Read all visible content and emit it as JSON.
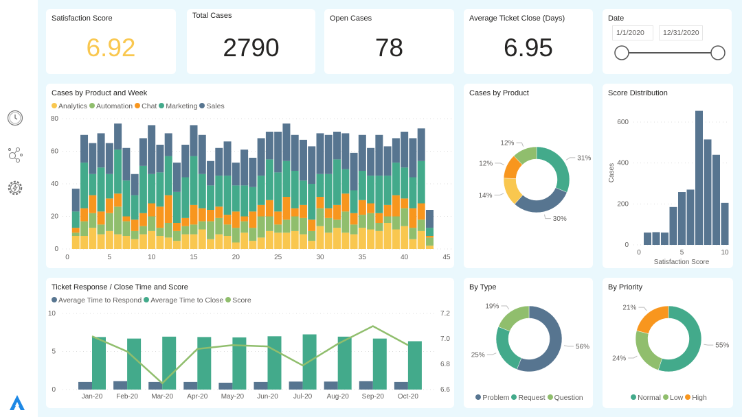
{
  "colors": {
    "analytics": "#f9c74f",
    "automation": "#90be6d",
    "chat": "#f8961e",
    "marketing": "#43aa8b",
    "sales": "#577590",
    "kpi_accent": "#f9c74f"
  },
  "sidebar": {
    "icons": [
      "clock-icon",
      "network-icon",
      "gear-bolt-icon"
    ],
    "logo": "app-logo-icon"
  },
  "kpis": {
    "satisfaction": {
      "title": "Satisfaction Score",
      "value": "6.92"
    },
    "total": {
      "title": "Total Cases",
      "value": "2790"
    },
    "open": {
      "title": "Open Cases",
      "value": "78"
    },
    "avg_close": {
      "title": "Average Ticket Close (Days)",
      "value": "6.95"
    }
  },
  "date_slicer": {
    "title": "Date",
    "start": "1/1/2020",
    "end": "12/31/2020",
    "range_fraction": [
      0,
      1
    ]
  },
  "chart_data": [
    {
      "id": "week",
      "type": "bar",
      "stacked": true,
      "title": "Cases by Product and Week",
      "xlim": [
        0,
        45
      ],
      "ylim": [
        0,
        80
      ],
      "xticks": [
        0,
        5,
        10,
        15,
        20,
        25,
        30,
        35,
        40,
        45
      ],
      "yticks": [
        0,
        20,
        40,
        60,
        80
      ],
      "grid": true,
      "legend": "top-left",
      "x": [
        1,
        2,
        3,
        4,
        5,
        6,
        7,
        8,
        9,
        10,
        11,
        12,
        13,
        14,
        15,
        16,
        17,
        18,
        19,
        20,
        21,
        22,
        23,
        24,
        25,
        26,
        27,
        28,
        29,
        30,
        31,
        32,
        33,
        34,
        35,
        36,
        37,
        38,
        39,
        40,
        41,
        42,
        43
      ],
      "series": [
        {
          "name": "Analytics",
          "color": "#f9c74f",
          "values": [
            8,
            8,
            13,
            9,
            11,
            9,
            8,
            6,
            9,
            11,
            8,
            7,
            5,
            9,
            9,
            12,
            6,
            9,
            8,
            4,
            10,
            5,
            7,
            11,
            10,
            10,
            11,
            9,
            5,
            14,
            10,
            13,
            10,
            9,
            13,
            12,
            11,
            16,
            12,
            14,
            6,
            11,
            2
          ]
        },
        {
          "name": "Automation",
          "color": "#90be6d",
          "values": [
            2,
            9,
            9,
            6,
            11,
            17,
            9,
            5,
            5,
            9,
            5,
            9,
            6,
            5,
            6,
            5,
            11,
            10,
            7,
            9,
            7,
            8,
            13,
            9,
            5,
            8,
            9,
            10,
            6,
            11,
            9,
            5,
            13,
            6,
            8,
            10,
            5,
            4,
            8,
            11,
            7,
            7,
            5
          ]
        },
        {
          "name": "Chat",
          "color": "#f8961e",
          "values": [
            3,
            8,
            11,
            8,
            9,
            8,
            3,
            7,
            8,
            8,
            13,
            17,
            5,
            5,
            12,
            8,
            7,
            7,
            6,
            10,
            3,
            10,
            7,
            10,
            8,
            14,
            5,
            8,
            7,
            7,
            6,
            9,
            11,
            7,
            9,
            6,
            6,
            7,
            13,
            6,
            12,
            10,
            1
          ]
        },
        {
          "name": "Marketing",
          "color": "#43aa8b",
          "values": [
            10,
            28,
            13,
            27,
            15,
            27,
            22,
            15,
            29,
            18,
            21,
            24,
            19,
            25,
            30,
            21,
            15,
            19,
            24,
            16,
            19,
            15,
            18,
            25,
            24,
            22,
            23,
            15,
            22,
            14,
            21,
            28,
            15,
            14,
            18,
            17,
            23,
            18,
            20,
            19,
            19,
            26,
            5
          ]
        },
        {
          "name": "Sales",
          "color": "#577590",
          "values": [
            14,
            17,
            19,
            21,
            19,
            16,
            20,
            13,
            17,
            30,
            17,
            14,
            18,
            20,
            19,
            24,
            15,
            17,
            21,
            14,
            22,
            18,
            23,
            17,
            25,
            23,
            22,
            25,
            23,
            25,
            24,
            17,
            22,
            23,
            22,
            17,
            25,
            18,
            15,
            22,
            24,
            20,
            11
          ]
        }
      ]
    },
    {
      "id": "product",
      "type": "pie",
      "donut": true,
      "title": "Cases by Product",
      "slices": [
        {
          "name": "Marketing",
          "value": 31,
          "label": "31%",
          "color": "#43aa8b"
        },
        {
          "name": "Sales",
          "value": 30,
          "label": "30%",
          "color": "#577590"
        },
        {
          "name": "Analytics",
          "value": 14,
          "label": "14%",
          "color": "#f9c74f"
        },
        {
          "name": "Chat",
          "value": 12,
          "label": "12%",
          "color": "#f8961e"
        },
        {
          "name": "Automation",
          "value": 12,
          "label": "12%",
          "color": "#90be6d"
        }
      ]
    },
    {
      "id": "dist",
      "type": "bar",
      "title": "Score Distribution",
      "xlabel": "Satisfaction Score",
      "ylabel": "Cases",
      "xlim": [
        0,
        10
      ],
      "ylim": [
        0,
        600
      ],
      "xticks": [
        0,
        5,
        10
      ],
      "yticks": [
        0,
        200,
        400,
        600
      ],
      "grid": true,
      "color": "#577590",
      "x": [
        1,
        2,
        3,
        4,
        5,
        6,
        7,
        8,
        9,
        10
      ],
      "values": [
        60,
        62,
        60,
        185,
        258,
        270,
        655,
        515,
        440,
        205
      ]
    },
    {
      "id": "ticket",
      "type": "bar",
      "title": "Ticket Response / Close Time and Score",
      "legend": "top-left",
      "grid": true,
      "categories": [
        "Jan-20",
        "Feb-20",
        "Mar-20",
        "Apr-20",
        "May-20",
        "Jun-20",
        "Jul-20",
        "Aug-20",
        "Sep-20",
        "Oct-20"
      ],
      "ylim": [
        0,
        10
      ],
      "yticks": [
        0,
        5,
        10
      ],
      "y2lim": [
        6.6,
        7.2
      ],
      "y2ticks": [
        "6.6",
        "6.8",
        "7.0",
        "7.2"
      ],
      "series": [
        {
          "name": "Average Time to Respond",
          "type": "bar",
          "axis": "left",
          "color": "#577590",
          "values": [
            1.0,
            1.1,
            1.0,
            1.0,
            0.9,
            1.0,
            1.05,
            1.05,
            1.1,
            1.0
          ]
        },
        {
          "name": "Average Time to Close",
          "type": "bar",
          "axis": "left",
          "color": "#43aa8b",
          "values": [
            6.9,
            6.7,
            6.95,
            6.9,
            6.85,
            7.0,
            7.25,
            6.95,
            6.7,
            6.35
          ]
        },
        {
          "name": "Score",
          "type": "line",
          "axis": "right",
          "color": "#90be6d",
          "values": [
            7.02,
            6.9,
            6.65,
            6.92,
            6.95,
            6.94,
            6.79,
            6.96,
            7.1,
            6.95
          ]
        }
      ]
    },
    {
      "id": "type",
      "type": "pie",
      "donut": true,
      "title": "By Type",
      "legend": "bottom",
      "slices": [
        {
          "name": "Problem",
          "value": 56,
          "label": "56%",
          "color": "#577590"
        },
        {
          "name": "Request",
          "value": 25,
          "label": "25%",
          "color": "#43aa8b"
        },
        {
          "name": "Question",
          "value": 19,
          "label": "19%",
          "color": "#90be6d"
        }
      ]
    },
    {
      "id": "priority",
      "type": "pie",
      "donut": true,
      "title": "By Priority",
      "legend": "bottom",
      "slices": [
        {
          "name": "Normal",
          "value": 55,
          "label": "55%",
          "color": "#43aa8b"
        },
        {
          "name": "Low",
          "value": 24,
          "label": "24%",
          "color": "#90be6d"
        },
        {
          "name": "High",
          "value": 21,
          "label": "21%",
          "color": "#f8961e"
        }
      ]
    }
  ]
}
